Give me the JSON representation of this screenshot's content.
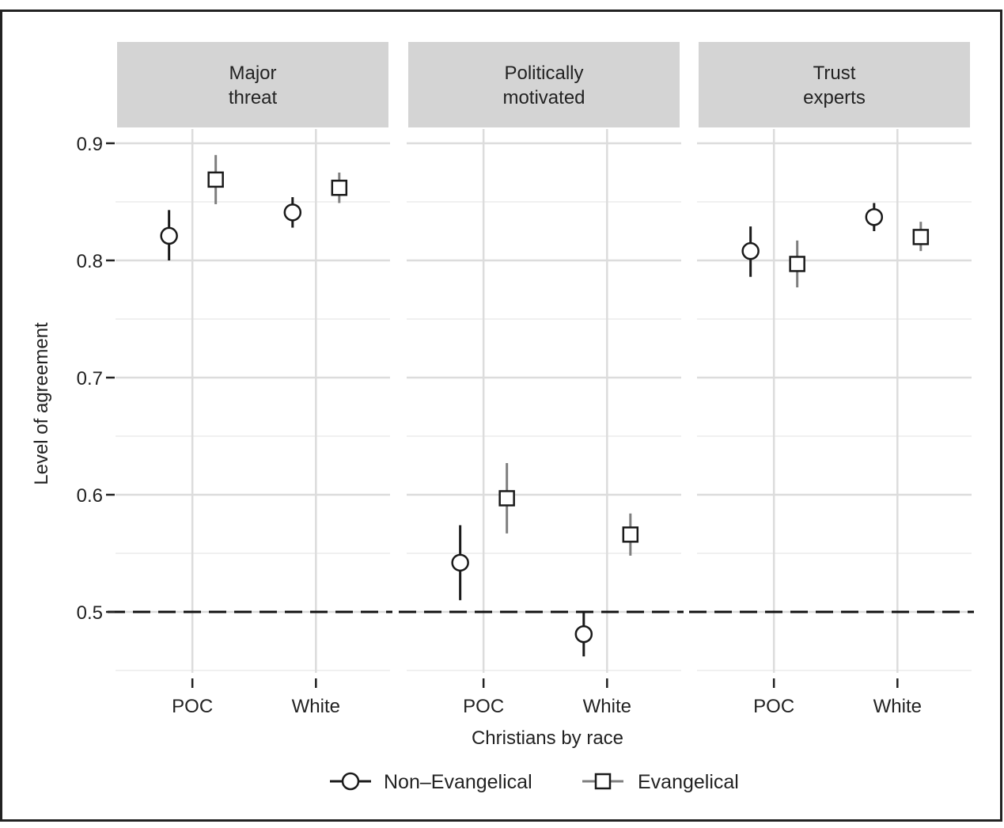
{
  "chart_data": {
    "type": "scatter",
    "subtype": "point-range (estimate with interval), faceted",
    "facets": [
      {
        "key": "major",
        "label_lines": [
          "Major",
          "threat"
        ]
      },
      {
        "key": "political",
        "label_lines": [
          "Politically",
          "motivated"
        ]
      },
      {
        "key": "trust",
        "label_lines": [
          "Trust",
          "experts"
        ]
      }
    ],
    "categories": [
      "POC",
      "White"
    ],
    "xlabel": "Christians by race",
    "ylabel": "Level of agreement",
    "ylim": [
      0.45,
      0.9
    ],
    "yticks": [
      0.5,
      0.6,
      0.7,
      0.8,
      0.9
    ],
    "ytick_labels": [
      "0.5",
      "0.6",
      "0.7",
      "0.8",
      "0.9"
    ],
    "reference_line": {
      "y": 0.5,
      "style": "dashed"
    },
    "grid": true,
    "legend_position": "bottom",
    "series": [
      {
        "name": "Non–Evangelical",
        "marker": "circle",
        "color": "#1a1a1a",
        "points": [
          {
            "facet": "major",
            "category": "POC",
            "y": 0.821,
            "low": 0.8,
            "high": 0.843
          },
          {
            "facet": "major",
            "category": "White",
            "y": 0.841,
            "low": 0.828,
            "high": 0.854
          },
          {
            "facet": "political",
            "category": "POC",
            "y": 0.542,
            "low": 0.51,
            "high": 0.574
          },
          {
            "facet": "political",
            "category": "White",
            "y": 0.481,
            "low": 0.462,
            "high": 0.5
          },
          {
            "facet": "trust",
            "category": "POC",
            "y": 0.808,
            "low": 0.786,
            "high": 0.829
          },
          {
            "facet": "trust",
            "category": "White",
            "y": 0.837,
            "low": 0.825,
            "high": 0.849
          }
        ]
      },
      {
        "name": "Evangelical",
        "marker": "square",
        "color": "#7f7f7f",
        "points": [
          {
            "facet": "major",
            "category": "POC",
            "y": 0.869,
            "low": 0.848,
            "high": 0.89
          },
          {
            "facet": "major",
            "category": "White",
            "y": 0.862,
            "low": 0.849,
            "high": 0.875
          },
          {
            "facet": "political",
            "category": "POC",
            "y": 0.597,
            "low": 0.567,
            "high": 0.627
          },
          {
            "facet": "political",
            "category": "White",
            "y": 0.566,
            "low": 0.548,
            "high": 0.584
          },
          {
            "facet": "trust",
            "category": "POC",
            "y": 0.797,
            "low": 0.777,
            "high": 0.817
          },
          {
            "facet": "trust",
            "category": "White",
            "y": 0.82,
            "low": 0.808,
            "high": 0.833
          }
        ]
      }
    ]
  },
  "colors": {
    "panel_strip": "#d4d4d4",
    "grid_major": "#dcdcdc",
    "grid_minor": "#ececec",
    "frame_border": "#222222"
  }
}
